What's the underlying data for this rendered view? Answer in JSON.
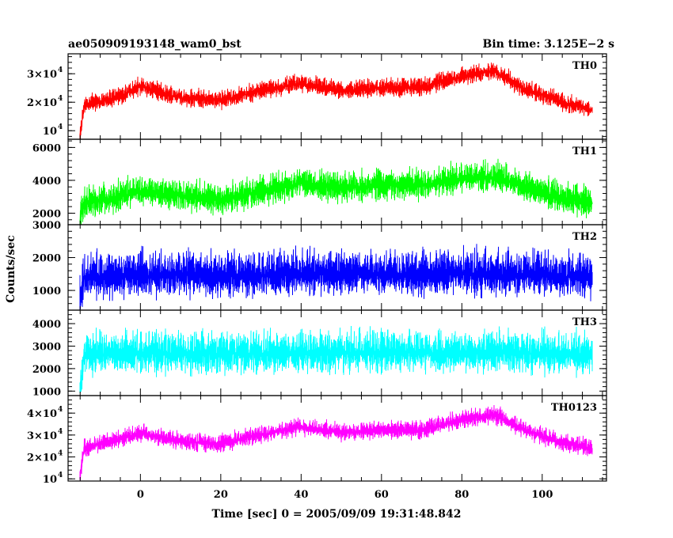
{
  "header": {
    "title": "ae050909193148_wam0_bst",
    "bin_time": "Bin time: 3.125E−2 s"
  },
  "chart_data": {
    "type": "line",
    "ylabel": "Counts/sec",
    "xlabel": "Time [sec] 0 = 2005/09/09 19:31:48.842",
    "x_range": [
      -18,
      116
    ],
    "data_x_range": [
      -15.2,
      112.5
    ],
    "x_ticks": [
      0,
      20,
      40,
      60,
      80,
      100
    ],
    "shared_x_axis": true,
    "panels": [
      {
        "name": "TH0",
        "color": "#ff0000",
        "ylim": [
          7000,
          37000
        ],
        "ticks": [
          {
            "v": 10000,
            "m": "10",
            "e": "4"
          },
          {
            "v": 20000,
            "m": "2×10",
            "e": "4"
          },
          {
            "v": 30000,
            "m": "3×10",
            "e": "4"
          }
        ],
        "trend": [
          [
            -15,
            8000
          ],
          [
            -14,
            19000
          ],
          [
            -5,
            22000
          ],
          [
            0,
            25500
          ],
          [
            10,
            21500
          ],
          [
            20,
            20500
          ],
          [
            30,
            24000
          ],
          [
            40,
            26500
          ],
          [
            50,
            24000
          ],
          [
            60,
            25000
          ],
          [
            70,
            25000
          ],
          [
            80,
            29000
          ],
          [
            88,
            31000
          ],
          [
            95,
            25000
          ],
          [
            105,
            20000
          ],
          [
            112,
            17500
          ]
        ],
        "noise": 2200
      },
      {
        "name": "TH1",
        "color": "#00ff00",
        "ylim": [
          1300,
          6500
        ],
        "ticks": [
          {
            "v": 2000,
            "m": "2000"
          },
          {
            "v": 4000,
            "m": "4000"
          },
          {
            "v": 6000,
            "m": "6000"
          }
        ],
        "trend": [
          [
            -15,
            1600
          ],
          [
            -14,
            2600
          ],
          [
            -5,
            3000
          ],
          [
            0,
            3300
          ],
          [
            10,
            3100
          ],
          [
            20,
            2800
          ],
          [
            30,
            3300
          ],
          [
            40,
            3800
          ],
          [
            50,
            3500
          ],
          [
            60,
            3700
          ],
          [
            70,
            3700
          ],
          [
            80,
            4100
          ],
          [
            88,
            4200
          ],
          [
            95,
            3600
          ],
          [
            105,
            2900
          ],
          [
            112,
            2600
          ]
        ],
        "noise": 650
      },
      {
        "name": "TH2",
        "color": "#0000ff",
        "ylim": [
          400,
          3000
        ],
        "ticks": [
          {
            "v": 1000,
            "m": "1000"
          },
          {
            "v": 2000,
            "m": "2000"
          },
          {
            "v": 3000,
            "m": "3000"
          }
        ],
        "trend": [
          [
            -15,
            700
          ],
          [
            -14,
            1400
          ],
          [
            0,
            1450
          ],
          [
            20,
            1450
          ],
          [
            40,
            1500
          ],
          [
            60,
            1500
          ],
          [
            80,
            1500
          ],
          [
            100,
            1450
          ],
          [
            112,
            1400
          ]
        ],
        "noise": 480
      },
      {
        "name": "TH3",
        "color": "#00ffff",
        "ylim": [
          800,
          4600
        ],
        "ticks": [
          {
            "v": 1000,
            "m": "1000"
          },
          {
            "v": 2000,
            "m": "2000"
          },
          {
            "v": 3000,
            "m": "3000"
          },
          {
            "v": 4000,
            "m": "4000"
          }
        ],
        "trend": [
          [
            -15,
            1000
          ],
          [
            -14,
            2600
          ],
          [
            0,
            2650
          ],
          [
            20,
            2650
          ],
          [
            40,
            2700
          ],
          [
            60,
            2700
          ],
          [
            80,
            2700
          ],
          [
            100,
            2650
          ],
          [
            112,
            2600
          ]
        ],
        "noise": 650
      },
      {
        "name": "TH0123",
        "color": "#ff00ff",
        "ylim": [
          9000,
          48000
        ],
        "ticks": [
          {
            "v": 10000,
            "m": "10",
            "e": "4"
          },
          {
            "v": 20000,
            "m": "2×10",
            "e": "4"
          },
          {
            "v": 30000,
            "m": "3×10",
            "e": "4"
          },
          {
            "v": 40000,
            "m": "4×10",
            "e": "4"
          }
        ],
        "trend": [
          [
            -15,
            11000
          ],
          [
            -14,
            24000
          ],
          [
            -5,
            28000
          ],
          [
            0,
            31000
          ],
          [
            10,
            27000
          ],
          [
            20,
            26000
          ],
          [
            30,
            30000
          ],
          [
            40,
            33500
          ],
          [
            50,
            31000
          ],
          [
            60,
            32000
          ],
          [
            70,
            32000
          ],
          [
            80,
            37000
          ],
          [
            88,
            39000
          ],
          [
            95,
            33000
          ],
          [
            105,
            26000
          ],
          [
            112,
            24000
          ]
        ],
        "noise": 2800
      }
    ]
  }
}
